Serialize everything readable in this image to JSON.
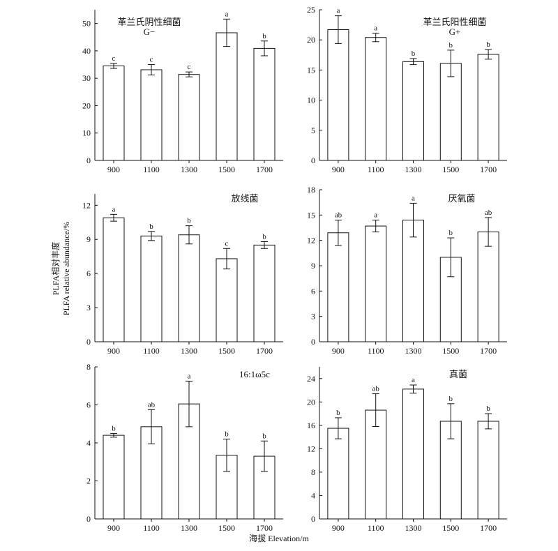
{
  "figure": {
    "ylabel_line1": "PLFA相对丰度",
    "ylabel_line2": "PLFA relative abundance/%",
    "xlabel": "海拔 Elevation/m"
  },
  "chart_data": [
    {
      "type": "bar",
      "title": "革兰氏阴性细菌",
      "subtitle": "G−",
      "categories": [
        "900",
        "1100",
        "1300",
        "1500",
        "1700"
      ],
      "values": [
        34.5,
        33.1,
        31.4,
        46.6,
        40.9
      ],
      "errors": [
        0.9,
        1.9,
        0.9,
        5.0,
        2.7
      ],
      "significance": [
        "c",
        "c",
        "c",
        "a",
        "b"
      ],
      "ylim": [
        0,
        55
      ],
      "yticks": [
        0,
        10,
        20,
        30,
        40,
        50
      ]
    },
    {
      "type": "bar",
      "title": "革兰氏阳性细菌",
      "subtitle": "G+",
      "categories": [
        "900",
        "1100",
        "1300",
        "1500",
        "1700"
      ],
      "values": [
        21.7,
        20.4,
        16.4,
        16.1,
        17.6
      ],
      "errors": [
        2.3,
        0.7,
        0.5,
        2.2,
        0.8
      ],
      "significance": [
        "a",
        "a",
        "b",
        "b",
        "b"
      ],
      "ylim": [
        0,
        25
      ],
      "yticks": [
        0,
        5,
        10,
        15,
        20,
        25
      ]
    },
    {
      "type": "bar",
      "title": "放线菌",
      "subtitle": "",
      "categories": [
        "900",
        "1100",
        "1300",
        "1500",
        "1700"
      ],
      "values": [
        10.9,
        9.3,
        9.4,
        7.3,
        8.5
      ],
      "errors": [
        0.3,
        0.4,
        0.8,
        0.9,
        0.3
      ],
      "significance": [
        "a",
        "b",
        "b",
        "c",
        "b"
      ],
      "ylim": [
        0,
        13
      ],
      "yticks": [
        0,
        3,
        6,
        9,
        12
      ]
    },
    {
      "type": "bar",
      "title": "厌氧菌",
      "subtitle": "",
      "categories": [
        "900",
        "1100",
        "1300",
        "1500",
        "1700"
      ],
      "values": [
        12.9,
        13.7,
        14.4,
        10.0,
        13.0
      ],
      "errors": [
        1.5,
        0.7,
        2.0,
        2.3,
        1.7
      ],
      "significance": [
        "ab",
        "a",
        "a",
        "b",
        "ab"
      ],
      "ylim": [
        0,
        18
      ],
      "yticks": [
        0,
        3,
        6,
        9,
        12,
        15,
        18
      ]
    },
    {
      "type": "bar",
      "title": "16:1ω5c",
      "subtitle": "",
      "categories": [
        "900",
        "1100",
        "1300",
        "1500",
        "1700"
      ],
      "values": [
        4.4,
        4.85,
        6.05,
        3.35,
        3.3
      ],
      "errors": [
        0.1,
        0.9,
        1.2,
        0.85,
        0.8
      ],
      "significance": [
        "b",
        "ab",
        "a",
        "b",
        "b"
      ],
      "ylim": [
        0,
        8
      ],
      "yticks": [
        0,
        2,
        4,
        6,
        8
      ]
    },
    {
      "type": "bar",
      "title": "真菌",
      "subtitle": "",
      "categories": [
        "900",
        "1100",
        "1300",
        "1500",
        "1700"
      ],
      "values": [
        15.5,
        18.6,
        22.2,
        16.7,
        16.7
      ],
      "errors": [
        1.8,
        2.8,
        0.7,
        3.0,
        1.3
      ],
      "significance": [
        "b",
        "ab",
        "a",
        "b",
        "b"
      ],
      "ylim": [
        0,
        26
      ],
      "yticks": [
        0,
        4,
        8,
        12,
        16,
        20,
        24
      ]
    }
  ]
}
